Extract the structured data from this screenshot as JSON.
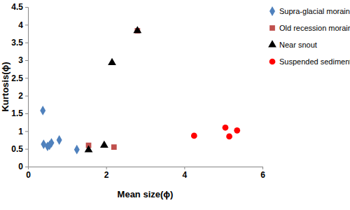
{
  "chart_data": {
    "type": "scatter",
    "x_label": "Mean size(ϕ)",
    "y_label": "Kurtosis(ϕ)",
    "xlim": [
      0,
      6
    ],
    "xticks": [
      0,
      2,
      4,
      6
    ],
    "ylim": [
      0,
      4.5
    ],
    "yticks": [
      0,
      0.5,
      1,
      1.5,
      2,
      2.5,
      3,
      3.5,
      4,
      4.5
    ],
    "grid": false,
    "legend": "right",
    "series": [
      {
        "name": "Supra-glacial moraine",
        "color": "#4f81bd",
        "marker": "diamond",
        "x": [
          0.38,
          0.4,
          0.5,
          0.55,
          0.6,
          0.8,
          1.25
        ],
        "values": [
          1.58,
          0.63,
          0.57,
          0.6,
          0.67,
          0.75,
          0.48
        ]
      },
      {
        "name": "Old recession moraine",
        "color": "#c0504d",
        "marker": "square",
        "x": [
          1.55,
          2.2,
          2.8
        ],
        "values": [
          0.6,
          0.55,
          3.83
        ]
      },
      {
        "name": "Near snout",
        "color": "#000000",
        "marker": "triangle",
        "x": [
          1.55,
          1.95,
          2.15,
          2.8
        ],
        "values": [
          0.47,
          0.6,
          2.93,
          3.83
        ]
      },
      {
        "name": "Suspended sediments",
        "color": "#ff0000",
        "marker": "circle",
        "x": [
          4.25,
          5.05,
          5.15,
          5.35
        ],
        "values": [
          0.87,
          1.1,
          0.85,
          1.02
        ]
      }
    ]
  }
}
